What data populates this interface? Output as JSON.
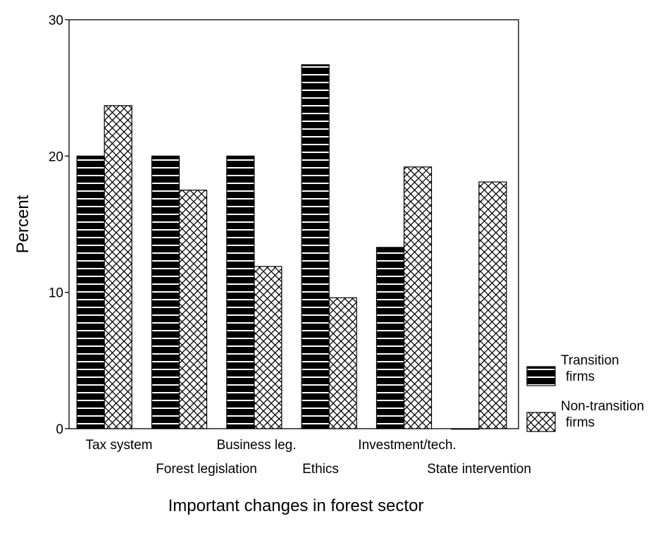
{
  "chart_data": {
    "type": "bar",
    "title": "",
    "xlabel": "Important changes in forest sector",
    "ylabel": "Percent",
    "ylim": [
      0,
      30
    ],
    "yticks": [
      0,
      10,
      20,
      30
    ],
    "grid": false,
    "legend_position": "right",
    "categories": [
      "Tax system",
      "Forest legislation",
      "Business leg.",
      "Ethics",
      "Investment/tech.",
      "State intervention"
    ],
    "series": [
      {
        "name": "Transition\nfirms",
        "values": [
          20.0,
          20.0,
          20.0,
          26.7,
          13.3,
          0.0
        ],
        "color": "#000000",
        "pattern": "horizontal-white-lines"
      },
      {
        "name": "Non-transition\nfirms",
        "values": [
          23.7,
          17.5,
          11.9,
          9.6,
          19.2,
          18.1
        ],
        "color": "#ffffff",
        "pattern": "crosshatch"
      }
    ]
  }
}
